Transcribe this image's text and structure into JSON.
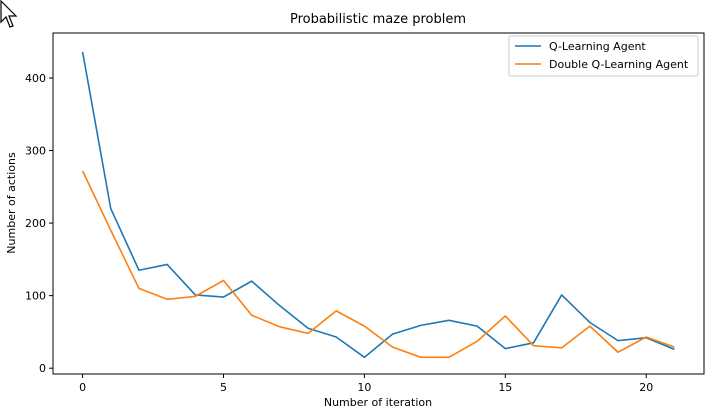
{
  "chart_data": {
    "type": "line",
    "title": "Probabilistic maze problem",
    "xlabel": "Number of iteration",
    "ylabel": "Number of actions",
    "xlim": [
      -1.05,
      22.05
    ],
    "ylim": [
      -8,
      462
    ],
    "xticks": [
      0,
      5,
      10,
      15,
      20
    ],
    "yticks": [
      0,
      100,
      200,
      300,
      400
    ],
    "grid": false,
    "legend_position": "top-right",
    "x": [
      0,
      1,
      2,
      3,
      4,
      5,
      6,
      7,
      8,
      9,
      10,
      11,
      12,
      13,
      14,
      15,
      16,
      17,
      18,
      19,
      20,
      21
    ],
    "series": [
      {
        "name": "Q-Learning Agent",
        "color": "#1f77b4",
        "values": [
          436,
          220,
          135,
          143,
          101,
          98,
          120,
          86,
          55,
          43,
          15,
          47,
          59,
          66,
          58,
          27,
          35,
          101,
          63,
          38,
          42,
          26
        ]
      },
      {
        "name": "Double Q-Learning Agent",
        "color": "#ff7f0e",
        "values": [
          272,
          190,
          110,
          95,
          99,
          121,
          73,
          57,
          48,
          79,
          58,
          29,
          15,
          15,
          37,
          72,
          31,
          28,
          58,
          22,
          43,
          29
        ]
      }
    ]
  }
}
